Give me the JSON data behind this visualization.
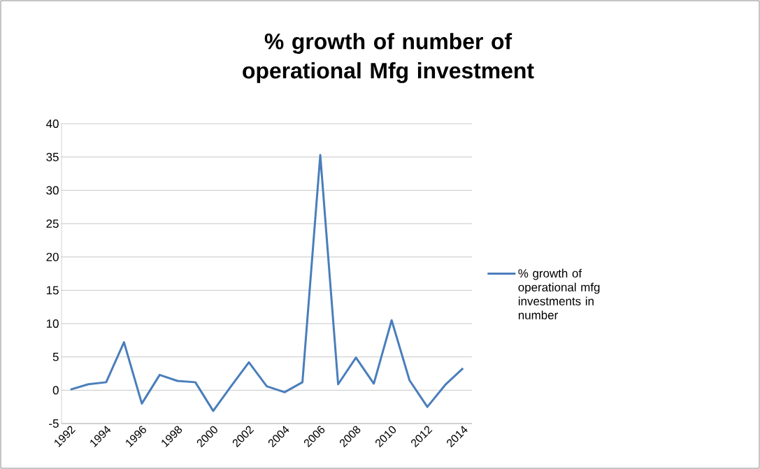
{
  "chart_data": {
    "type": "line",
    "title": "% growth of number of operational Mfg investment",
    "categories": [
      "1992",
      null,
      "1994",
      null,
      "1996",
      null,
      "1998",
      null,
      "2000",
      null,
      "2002",
      null,
      "2004",
      null,
      "2006",
      null,
      "2008",
      null,
      "2010",
      null,
      "2012",
      null,
      "2014"
    ],
    "series": [
      {
        "name": "% growth of operational mfg investments in number",
        "color": "#4a7ebb",
        "values": [
          0.1,
          0.9,
          1.2,
          7.2,
          -2.0,
          2.3,
          1.4,
          1.2,
          -3.1,
          0.6,
          4.2,
          0.6,
          -0.3,
          1.2,
          35.3,
          0.9,
          4.9,
          1.0,
          10.5,
          1.5,
          -2.5,
          0.8,
          3.3
        ]
      }
    ],
    "ylim": [
      -5,
      40
    ],
    "yticks": [
      -5,
      0,
      5,
      10,
      15,
      20,
      25,
      30,
      35,
      40
    ],
    "grid": "y",
    "legend": "right",
    "marker": "none",
    "line_style": "solid"
  }
}
